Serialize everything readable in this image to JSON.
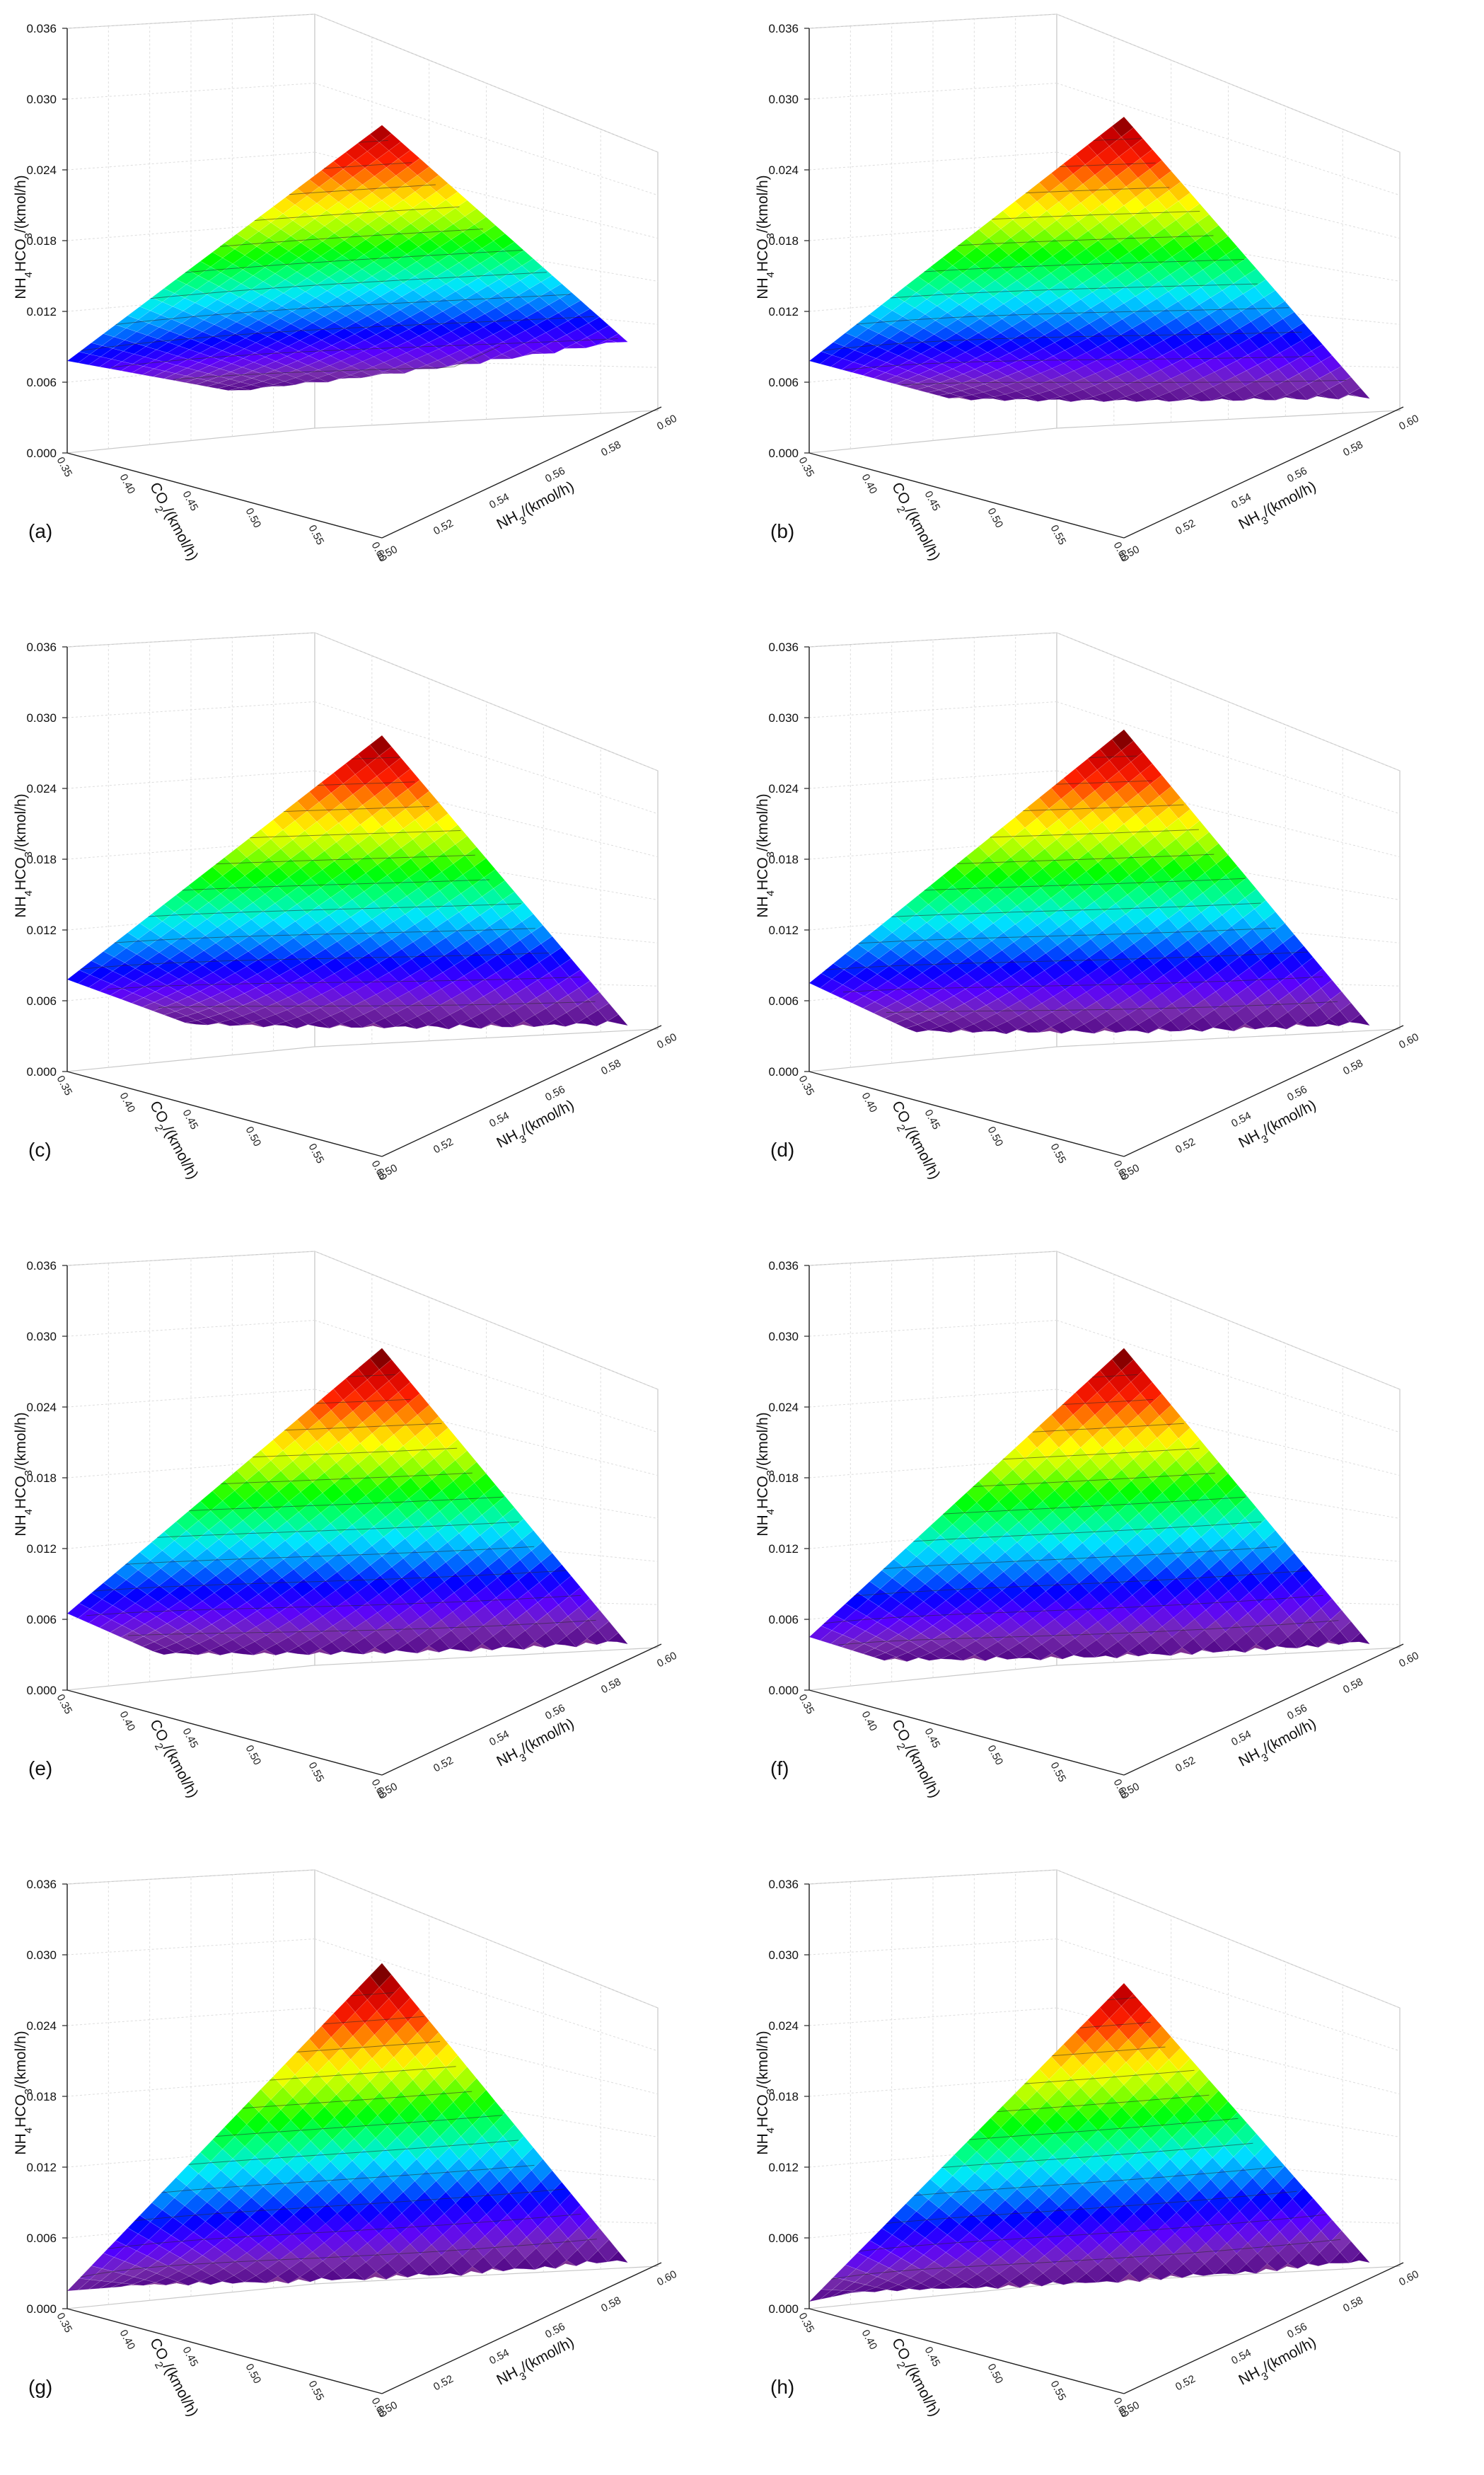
{
  "figure": {
    "z_axis_label": "NH4HCO3/(kmol/h)",
    "x_axis_label": "CO2/(kmol/h)",
    "y_axis_label": "NH3/(kmol/h)",
    "z_ticks": [
      "0.000",
      "0.006",
      "0.012",
      "0.018",
      "0.024",
      "0.030",
      "0.036"
    ],
    "x_ticks": [
      "0.35",
      "0.40",
      "0.45",
      "0.50",
      "0.55",
      "0.60"
    ],
    "y_ticks": [
      "0.50",
      "0.52",
      "0.54",
      "0.56",
      "0.58",
      "0.60"
    ],
    "colors": {
      "colormap": [
        "#4b0082",
        "#7a2fb0",
        "#5a00ff",
        "#0000ff",
        "#0080ff",
        "#00e5ff",
        "#00ff80",
        "#00ff00",
        "#9aff00",
        "#ffff00",
        "#ffa000",
        "#ff2000",
        "#d00000",
        "#5a0000"
      ],
      "floor": "#7d2f94",
      "grid": "#c8c8c8",
      "axis": "#222222"
    }
  },
  "chart_data": [
    {
      "type": "surface",
      "panel_label": "(a)",
      "xlabel": "CO2/(kmol/h)",
      "ylabel": "NH3/(kmol/h)",
      "zlabel": "NH4HCO3/(kmol/h)",
      "xlim": [
        0.35,
        0.6
      ],
      "ylim": [
        0.5,
        0.6
      ],
      "zlim": [
        0.0,
        0.036
      ],
      "peak_z": 0.035,
      "front_z": 0.0078,
      "side_z": 0.0055,
      "floor_cut": 0.4
    },
    {
      "type": "surface",
      "panel_label": "(b)",
      "xlabel": "CO2/(kmol/h)",
      "ylabel": "NH3/(kmol/h)",
      "zlabel": "NH4HCO3/(kmol/h)",
      "xlim": [
        0.35,
        0.6
      ],
      "ylim": [
        0.5,
        0.6
      ],
      "zlim": [
        0.0,
        0.036
      ],
      "peak_z": 0.0357,
      "front_z": 0.0078,
      "side_z": 0.0007,
      "floor_cut": 0.48
    },
    {
      "type": "surface",
      "panel_label": "(c)",
      "xlabel": "CO2/(kmol/h)",
      "ylabel": "NH3/(kmol/h)",
      "zlabel": "NH4HCO3/(kmol/h)",
      "xlim": [
        0.35,
        0.6
      ],
      "ylim": [
        0.5,
        0.6
      ],
      "zlim": [
        0.0,
        0.036
      ],
      "peak_z": 0.0357,
      "front_z": 0.0078,
      "side_z": 0.0,
      "floor_cut": 0.55
    },
    {
      "type": "surface",
      "panel_label": "(d)",
      "xlabel": "CO2/(kmol/h)",
      "ylabel": "NH3/(kmol/h)",
      "zlabel": "NH4HCO3/(kmol/h)",
      "xlim": [
        0.35,
        0.6
      ],
      "ylim": [
        0.5,
        0.6
      ],
      "zlim": [
        0.0,
        0.036
      ],
      "peak_z": 0.0362,
      "front_z": 0.0075,
      "side_z": 0.0,
      "floor_cut": 0.62
    },
    {
      "type": "surface",
      "panel_label": "(e)",
      "xlabel": "CO2/(kmol/h)",
      "ylabel": "NH3/(kmol/h)",
      "zlabel": "NH4HCO3/(kmol/h)",
      "xlim": [
        0.35,
        0.6
      ],
      "ylim": [
        0.5,
        0.6
      ],
      "zlim": [
        0.0,
        0.036
      ],
      "peak_z": 0.0362,
      "front_z": 0.0065,
      "side_z": 0.0,
      "floor_cut": 0.66
    },
    {
      "type": "surface",
      "panel_label": "(f)",
      "xlabel": "CO2/(kmol/h)",
      "ylabel": "NH3/(kmol/h)",
      "zlabel": "NH4HCO3/(kmol/h)",
      "xlim": [
        0.35,
        0.6
      ],
      "ylim": [
        0.5,
        0.6
      ],
      "zlim": [
        0.0,
        0.036
      ],
      "peak_z": 0.0362,
      "front_z": 0.0045,
      "side_z": 0.0,
      "floor_cut": 0.72
    },
    {
      "type": "surface",
      "panel_label": "(g)",
      "xlabel": "CO2/(kmol/h)",
      "ylabel": "NH3/(kmol/h)",
      "zlabel": "NH4HCO3/(kmol/h)",
      "xlim": [
        0.35,
        0.6
      ],
      "ylim": [
        0.5,
        0.6
      ],
      "zlim": [
        0.0,
        0.036
      ],
      "peak_z": 0.0365,
      "front_z": 0.0015,
      "side_z": 0.0,
      "floor_cut": 0.78
    },
    {
      "type": "surface",
      "panel_label": "(h)",
      "xlabel": "CO2/(kmol/h)",
      "ylabel": "NH3/(kmol/h)",
      "zlabel": "NH4HCO3/(kmol/h)",
      "xlim": [
        0.35,
        0.6
      ],
      "ylim": [
        0.5,
        0.6
      ],
      "zlim": [
        0.0,
        0.036
      ],
      "peak_z": 0.0348,
      "front_z": 0.0006,
      "side_z": 0.0,
      "floor_cut": 0.84
    }
  ]
}
